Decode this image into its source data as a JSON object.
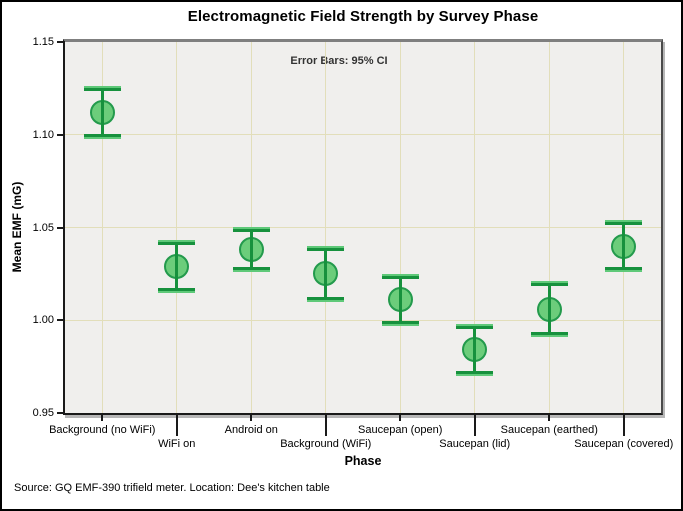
{
  "chart_data": {
    "type": "errorbar",
    "title": "Electromagnetic Field Strength by Survey Phase",
    "annotation": "Error Bars: 95% CI",
    "xlabel": "Phase",
    "ylabel": "Mean EMF (mG)",
    "footnote": "Source: GQ EMF-390 trifield meter. Location: Dee's kitchen table",
    "categories": [
      "Background (no WiFi)",
      "WiFi on",
      "Android on",
      "Background (WiFi)",
      "Saucepan (open)",
      "Saucepan (lid)",
      "Saucepan (earthed)",
      "Saucepan (covered)"
    ],
    "series": [
      {
        "name": "Mean EMF",
        "means": [
          1.112,
          1.029,
          1.038,
          1.025,
          1.011,
          0.984,
          1.006,
          1.04
        ],
        "ci_low": [
          1.099,
          1.016,
          1.027,
          1.011,
          0.998,
          0.971,
          0.992,
          1.027
        ],
        "ci_high": [
          1.125,
          1.042,
          1.049,
          1.039,
          1.024,
          0.997,
          1.02,
          1.053
        ]
      }
    ],
    "ylim": [
      0.95,
      1.15
    ],
    "yticks": [
      0.95,
      1.0,
      1.05,
      1.1,
      1.15
    ],
    "ytick_labels": [
      "0.95",
      "1.00",
      "1.05",
      "1.10",
      "1.15"
    ],
    "grid": true,
    "legend_position": "none",
    "colors": {
      "marker_fill": "#6ccd7b",
      "marker_stroke": "#239a4c",
      "errorbar_dark": "#17913d",
      "errorbar_light": "#5fc979",
      "gridline": "#e2deba",
      "plot_background": "#f0efed",
      "frame_top": "#7f7f7f",
      "frame_dark": "#1a1a1a",
      "canvas_border": "#000000"
    }
  }
}
